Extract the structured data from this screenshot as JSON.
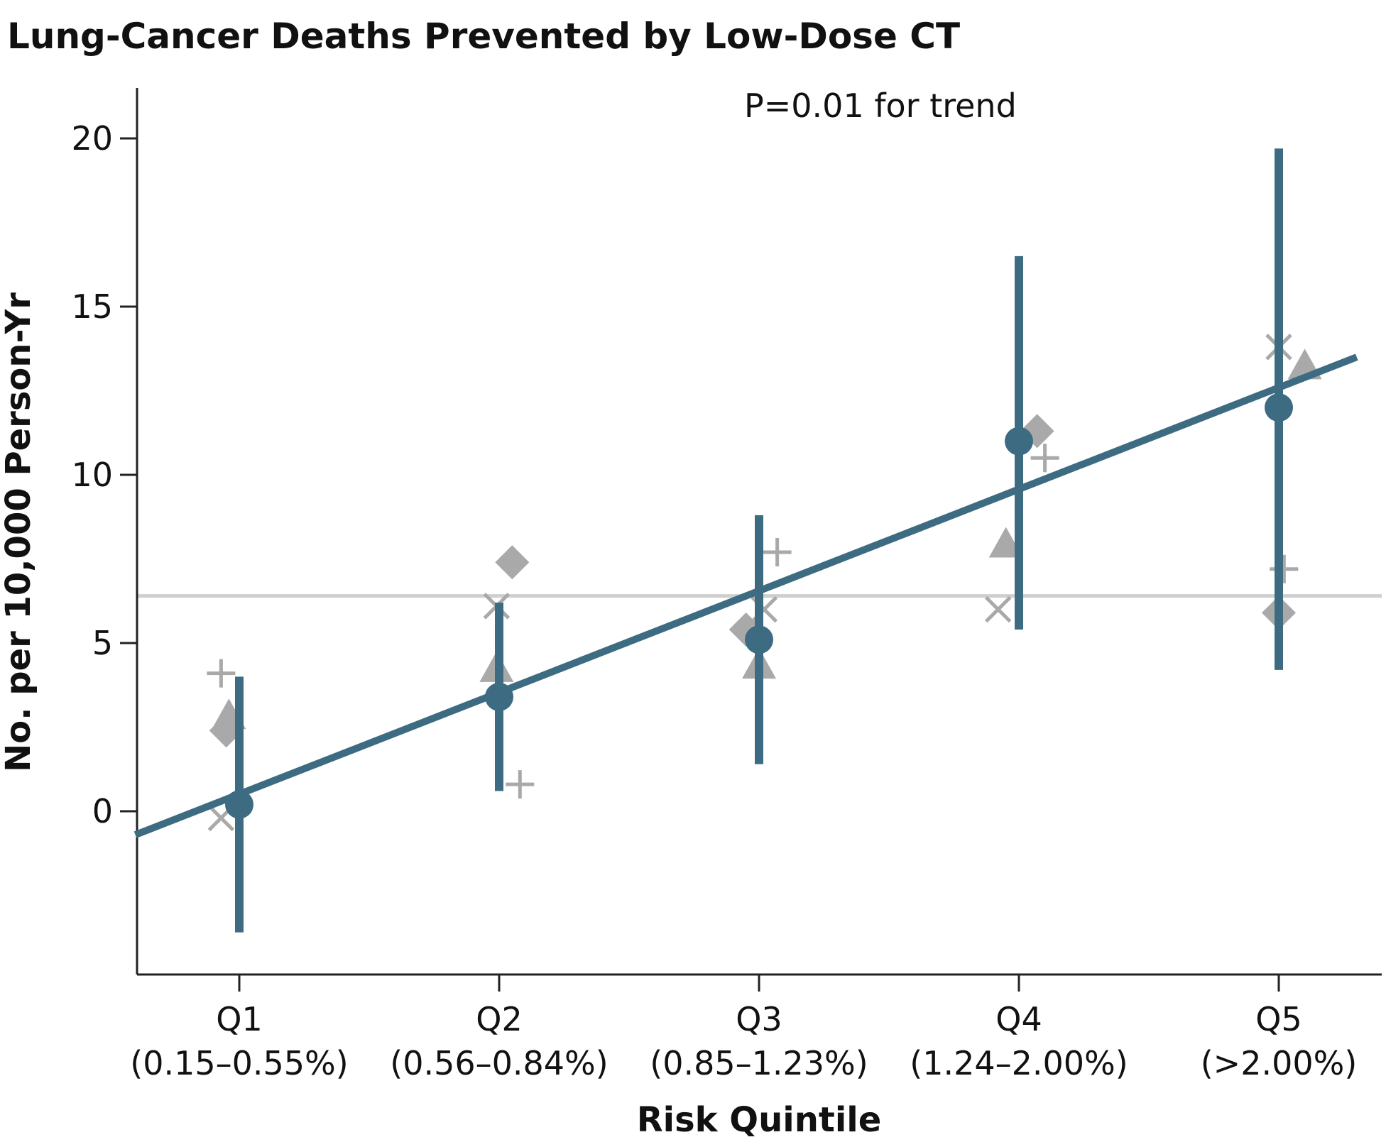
{
  "chart_data": {
    "type": "scatter",
    "title": "Lung-Cancer Deaths Prevented by Low-Dose CT",
    "xlabel": "Risk Quintile",
    "ylabel": "No. per 10,000 Person-Yr",
    "annotation": "P=0.01 for trend",
    "categories": [
      "Q1",
      "Q2",
      "Q3",
      "Q4",
      "Q5"
    ],
    "category_ranges": [
      "(0.15–0.55%)",
      "(0.56–0.84%)",
      "(0.85–1.23%)",
      "(1.24–2.00%)",
      "(>2.00%)"
    ],
    "yticks": [
      "0",
      "5",
      "10",
      "15",
      "20"
    ],
    "ylim": [
      -4.8,
      21.5
    ],
    "reference_line_y": 6.4,
    "trend_line": {
      "x": [
        0.6,
        5.3
      ],
      "y": [
        -0.7,
        13.5
      ]
    },
    "main_series": {
      "values": [
        0.2,
        3.4,
        5.1,
        11.0,
        12.0
      ],
      "ci_low": [
        -3.6,
        0.6,
        1.4,
        5.4,
        4.2
      ],
      "ci_high": [
        4.0,
        6.2,
        8.8,
        16.5,
        19.7
      ]
    },
    "secondary_series": [
      {
        "marker": "plus",
        "x": [
          0.93,
          2.08,
          3.07,
          4.1,
          5.02
        ],
        "values": [
          4.1,
          0.8,
          7.7,
          10.5,
          7.2
        ]
      },
      {
        "marker": "x",
        "x": [
          0.93,
          1.99,
          3.02,
          3.92,
          5.0
        ],
        "values": [
          -0.2,
          6.1,
          6.0,
          6.0,
          13.8
        ]
      },
      {
        "marker": "triangle",
        "x": [
          0.96,
          1.99,
          3.0,
          3.95,
          5.1
        ],
        "values": [
          2.8,
          4.2,
          4.3,
          7.9,
          13.2
        ]
      },
      {
        "marker": "diamond",
        "x": [
          0.95,
          2.05,
          2.95,
          4.07,
          5.0
        ],
        "values": [
          2.4,
          7.4,
          5.4,
          11.3,
          5.9
        ]
      }
    ],
    "colors": {
      "main": "#3d6b82",
      "secondary": "#a9a9a9",
      "reference": "#cfcfcf",
      "axis": "#222222"
    }
  }
}
